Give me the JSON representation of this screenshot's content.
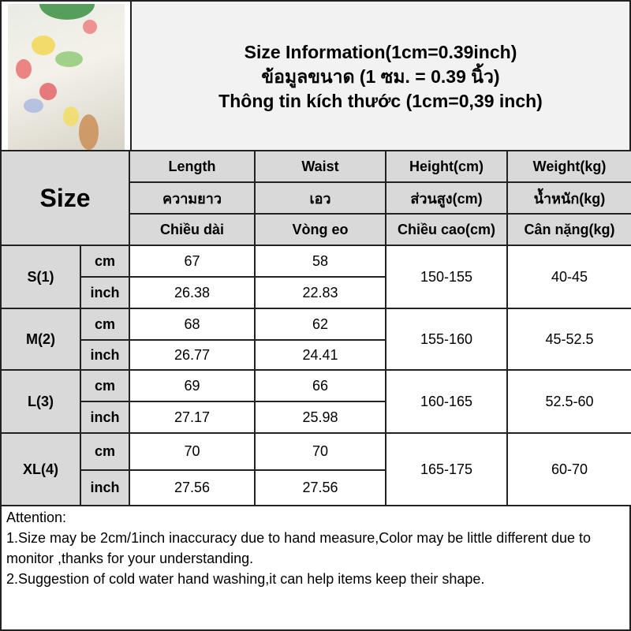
{
  "header": {
    "title_en": "Size Information(1cm=0.39inch)",
    "title_th": "ข้อมูลขนาด (1 ซม. = 0.39 นิ้ว)",
    "title_vi": "Thông tin kích thước (1cm=0,39 inch)"
  },
  "table": {
    "size_label": "Size",
    "columns": [
      {
        "en": "Length",
        "th": "ความยาว",
        "vi": "Chiều dài"
      },
      {
        "en": "Waist",
        "th": "เอว",
        "vi": "Vòng eo"
      },
      {
        "en": "Height(cm)",
        "th": "ส่วนสูง(cm)",
        "vi": "Chiều cao(cm)"
      },
      {
        "en": "Weight(kg)",
        "th": "น้ำหนัก(kg)",
        "vi": "Cân nặng(kg)"
      }
    ],
    "rows": [
      {
        "size": "S(1)",
        "cm_label": "cm",
        "inch_label": "inch",
        "length_cm": "67",
        "waist_cm": "58",
        "length_inch": "26.38",
        "waist_inch": "22.83",
        "height": "150-155",
        "weight": "40-45"
      },
      {
        "size": "M(2)",
        "cm_label": "cm",
        "inch_label": "inch",
        "length_cm": "68",
        "waist_cm": "62",
        "length_inch": "26.77",
        "waist_inch": "24.41",
        "height": "155-160",
        "weight": "45-52.5"
      },
      {
        "size": "L(3)",
        "cm_label": "cm",
        "inch_label": "inch",
        "length_cm": "69",
        "waist_cm": "66",
        "length_inch": "27.17",
        "waist_inch": "25.98",
        "height": "160-165",
        "weight": "52.5-60"
      },
      {
        "size": "XL(4)",
        "cm_label": "cm",
        "inch_label": "inch",
        "length_cm": "70",
        "waist_cm": "70",
        "length_inch": "27.56",
        "waist_inch": "27.56",
        "height": "165-175",
        "weight": "60-70"
      }
    ]
  },
  "attention": {
    "heading": "Attention:",
    "line1": "1.Size may be 2cm/1inch inaccuracy due to hand measure,Color may be little different due to monitor ,thanks for your understanding.",
    "line2": "2.Suggestion of cold water hand washing,it can help items keep their shape."
  }
}
